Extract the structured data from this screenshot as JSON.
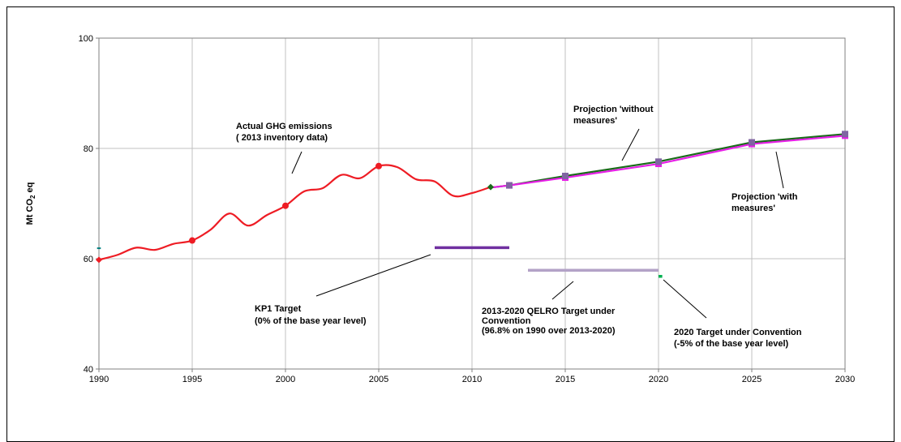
{
  "chart_data": {
    "type": "line",
    "title": "",
    "ylabel": "Mt CO",
    "ylabel_sub": "2",
    "ylabel_tail": " eq",
    "xlim": [
      1990,
      2030
    ],
    "ylim": [
      40,
      100
    ],
    "x_ticks": [
      "1990",
      "1995",
      "2000",
      "2005",
      "2010",
      "2015",
      "2020",
      "2025",
      "2030"
    ],
    "y_ticks": [
      "40",
      "60",
      "80",
      "100"
    ],
    "grid": true,
    "colors": {
      "actual": "#ee1c24",
      "without_measures": "#1a6b1a",
      "with_measures": "#e61ee6",
      "marker_square": "#8064a2",
      "kp1_target": "#7030a0",
      "qelro_target": "#b3a2c7",
      "conv_2020_target": "#00b050",
      "base_year_tick": "#008080"
    },
    "series": [
      {
        "key": "actual",
        "x": [
          1990,
          1991,
          1992,
          1993,
          1994,
          1995,
          1996,
          1997,
          1998,
          1999,
          2000,
          2001,
          2002,
          2003,
          2004,
          2005,
          2006,
          2007,
          2008,
          2009,
          2010,
          2011
        ],
        "y": [
          59.8,
          60.7,
          62.0,
          61.6,
          62.7,
          63.3,
          65.3,
          68.2,
          66.0,
          67.9,
          69.6,
          72.2,
          72.8,
          75.2,
          74.6,
          76.8,
          76.6,
          74.4,
          74.0,
          71.4,
          71.9,
          73.0
        ],
        "markers_at": [
          1990,
          1995,
          2000,
          2005,
          2011
        ]
      },
      {
        "key": "without_measures",
        "x": [
          2011,
          2012,
          2015,
          2020,
          2025,
          2030
        ],
        "y": [
          72.9,
          73.3,
          75.0,
          77.6,
          81.1,
          82.6
        ]
      },
      {
        "key": "with_measures",
        "x": [
          2011,
          2012,
          2015,
          2020,
          2025,
          2030
        ],
        "y": [
          72.9,
          73.3,
          74.7,
          77.2,
          80.8,
          82.3
        ]
      }
    ],
    "targets": [
      {
        "key": "kp1_target",
        "x": [
          2008,
          2012
        ],
        "y": 62.0
      },
      {
        "key": "qelro_target",
        "x": [
          2013,
          2020
        ],
        "y": 57.9
      },
      {
        "key": "conv_2020_target",
        "x": [
          2020,
          2020.2
        ],
        "y": 56.8
      },
      {
        "key": "base_year_tick",
        "x": [
          1989.9,
          1990.1
        ],
        "y": 61.9
      }
    ],
    "annotations": {
      "actual_line1": "Actual GHG emissions",
      "actual_line2": "( 2013  inventory data)",
      "without_line1": "Projection 'without",
      "without_line2": "measures'",
      "with_line1": "Projection 'with",
      "with_line2": "measures'",
      "kp1_line1": "KP1 Target",
      "kp1_line2": "(0% of the base year level)",
      "qelro_line1": "2013-2020 QELRO Target under",
      "qelro_line2": "Convention",
      "qelro_line3": "(96.8% on 1990 over 2013-2020)",
      "conv_line1": "2020 Target under Convention",
      "conv_line2": "(-5% of the base year level)"
    }
  }
}
